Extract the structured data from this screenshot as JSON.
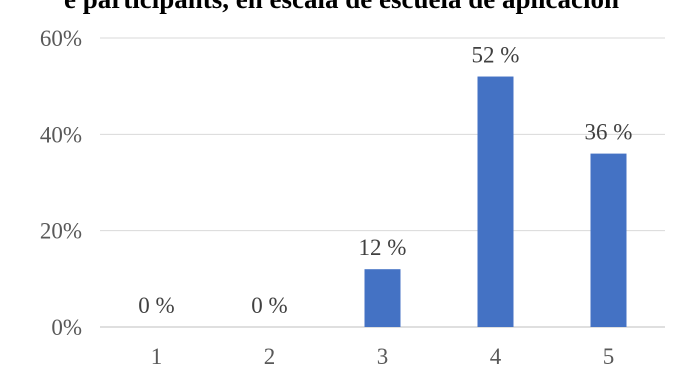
{
  "chart_data": {
    "type": "bar",
    "title": "e participants, en escala de escuela de aplicación",
    "categories": [
      "1",
      "2",
      "3",
      "4",
      "5"
    ],
    "values": [
      0,
      0,
      12,
      52,
      36
    ],
    "data_labels": [
      "0 %",
      "0 %",
      "12 %",
      "52 %",
      "36 %"
    ],
    "ylim": [
      0,
      60
    ],
    "yticks": [
      0,
      20,
      40,
      60
    ],
    "ytick_labels": [
      "0%",
      "20%",
      "40%",
      "60%"
    ],
    "xlabel": "",
    "ylabel": "",
    "grid": true,
    "bar_color": "#4472C4",
    "grid_color": "#D9D9D9"
  }
}
